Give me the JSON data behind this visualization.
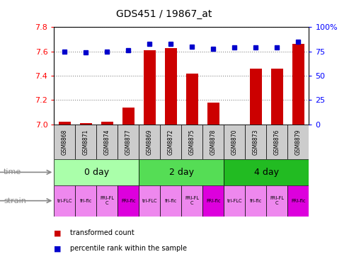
{
  "title": "GDS451 / 19867_at",
  "samples": [
    "GSM8868",
    "GSM8871",
    "GSM8874",
    "GSM8877",
    "GSM8869",
    "GSM8872",
    "GSM8875",
    "GSM8878",
    "GSM8870",
    "GSM8873",
    "GSM8876",
    "GSM8879"
  ],
  "bar_values": [
    7.02,
    7.01,
    7.02,
    7.14,
    7.61,
    7.63,
    7.42,
    7.18,
    7.0,
    7.46,
    7.46,
    7.66
  ],
  "dot_values": [
    75,
    74,
    75,
    76,
    83,
    83,
    80,
    78,
    79,
    79,
    79,
    85
  ],
  "ylim_left": [
    7.0,
    7.8
  ],
  "ylim_right": [
    0,
    100
  ],
  "yticks_left": [
    7.0,
    7.2,
    7.4,
    7.6,
    7.8
  ],
  "yticks_right": [
    0,
    25,
    50,
    75,
    100
  ],
  "bar_color": "#cc0000",
  "dot_color": "#0000cc",
  "bar_base": 7.0,
  "time_groups": [
    {
      "label": "0 day",
      "start": 0,
      "end": 4,
      "color": "#aaffaa"
    },
    {
      "label": "2 day",
      "start": 4,
      "end": 8,
      "color": "#55dd55"
    },
    {
      "label": "4 day",
      "start": 8,
      "end": 12,
      "color": "#22bb22"
    }
  ],
  "strain_labels": [
    "tri-FLC",
    "fri-flc",
    "FRI-FL\nC",
    "FRI-flc",
    "tri-FLC",
    "fri-flc",
    "FRI-FL\nC",
    "FRI-flc",
    "tri-FLC",
    "fri-flc",
    "FRI-FL\nC",
    "FRI-flc"
  ],
  "strain_colors": [
    "#ee88ee",
    "#ee88ee",
    "#ee88ee",
    "#dd00dd",
    "#ee88ee",
    "#ee88ee",
    "#ee88ee",
    "#dd00dd",
    "#ee88ee",
    "#ee88ee",
    "#ee88ee",
    "#dd00dd"
  ],
  "grid_color": "#888888",
  "bg_color": "#ffffff",
  "sample_bg": "#cccccc",
  "label_color": "#888888"
}
